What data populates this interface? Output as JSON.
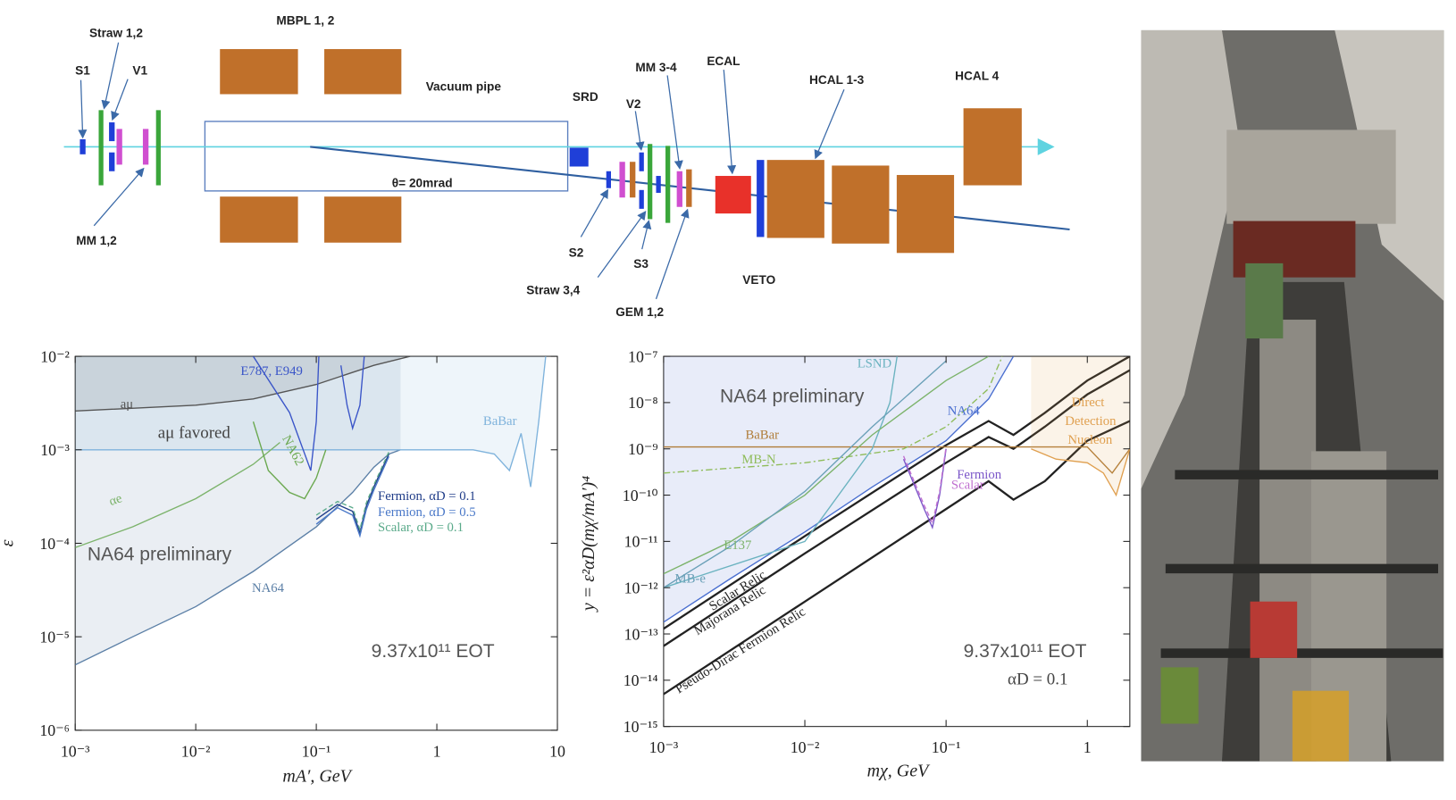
{
  "diagram": {
    "labels": [
      "Straw 1,2",
      "S1",
      "V1",
      "MBPL 1, 2",
      "Vacuum pipe",
      "SRD",
      "V2",
      "MM 3-4",
      "ECAL",
      "HCAL 1-3",
      "HCAL 4",
      "θ= 20mrad",
      "MM 1,2",
      "S2",
      "S3",
      "Straw 3,4",
      "GEM 1,2",
      "VETO"
    ]
  },
  "chart_data": [
    {
      "type": "line",
      "xscale": "log",
      "yscale": "log",
      "xlabel": "mA′, GeV",
      "ylabel": "ε",
      "xlim": [
        0.001,
        10
      ],
      "ylim": [
        1e-06,
        0.01
      ],
      "xticks": [
        {
          "value": 0.001,
          "label": "10⁻³"
        },
        {
          "value": 0.01,
          "label": "10⁻²"
        },
        {
          "value": 0.1,
          "label": "10⁻¹"
        },
        1,
        10
      ],
      "yticks": [
        {
          "value": 1e-06,
          "label": "10⁻⁶"
        },
        {
          "value": 1e-05,
          "label": "10⁻⁵"
        },
        {
          "value": 0.0001,
          "label": "10⁻⁴"
        },
        {
          "value": 0.001,
          "label": "10⁻³"
        },
        {
          "value": 0.01,
          "label": "10⁻²"
        }
      ],
      "annotations": [
        "aμ favored",
        "NA64 preliminary",
        "9.37x10¹¹ EOT"
      ],
      "series": [
        {
          "name": "NA64",
          "color": "#5b7fa6",
          "fill": "above",
          "x": [
            0.001,
            0.003,
            0.01,
            0.03,
            0.1,
            0.2,
            0.3,
            0.4,
            0.5
          ],
          "values": [
            5e-06,
            1e-05,
            2.1e-05,
            5e-05,
            0.00015,
            0.00035,
            0.00065,
            0.0009,
            0.001
          ]
        },
        {
          "name": "BaBar",
          "color": "#7fb3dc",
          "fill": "above",
          "x": [
            0.001,
            0.5,
            1,
            2,
            3,
            4,
            5,
            6,
            7,
            8
          ],
          "values": [
            0.001,
            0.001,
            0.001,
            0.001,
            0.0009,
            0.0006,
            0.0015,
            0.0004,
            0.002,
            0.01
          ]
        },
        {
          "name": "aμ",
          "color": "#555555",
          "fill": "above",
          "x": [
            0.001,
            0.01,
            0.03,
            0.1,
            0.3,
            0.6
          ],
          "values": [
            0.0026,
            0.003,
            0.0035,
            0.005,
            0.008,
            0.01
          ]
        },
        {
          "name": "αe",
          "color": "#7cb36b",
          "x": [
            0.001,
            0.003,
            0.01,
            0.03,
            0.05
          ],
          "values": [
            9e-05,
            0.00015,
            0.0003,
            0.0007,
            0.0012
          ]
        },
        {
          "name": "E787, E949",
          "color": "#3a55c8",
          "x": [
            0.03,
            0.06,
            0.09,
            0.1,
            0.105,
            0.13,
            0.16,
            0.18,
            0.2,
            0.23,
            0.25
          ],
          "values": [
            0.01,
            0.0025,
            0.0006,
            0.002,
            0.01,
            null,
            0.008,
            0.003,
            0.0017,
            0.003,
            0.01
          ]
        },
        {
          "name": "NA62",
          "color": "#6aa84f",
          "x": [
            0.03,
            0.04,
            0.06,
            0.08,
            0.1,
            0.12
          ],
          "values": [
            0.002,
            0.0006,
            0.00035,
            0.0003,
            0.0005,
            0.001
          ]
        },
        {
          "name": "Fermion, αD = 0.1",
          "color": "#1f3c88",
          "x": [
            0.1,
            0.15,
            0.2,
            0.23,
            0.26,
            0.3,
            0.4
          ],
          "values": [
            0.00018,
            0.00026,
            0.00022,
            0.00013,
            0.00025,
            0.0004,
            0.0009
          ]
        },
        {
          "name": "Fermion, αD = 0.5",
          "color": "#4a78c8",
          "x": [
            0.1,
            0.15,
            0.2,
            0.23,
            0.26,
            0.3,
            0.4
          ],
          "values": [
            0.00016,
            0.00024,
            0.0002,
            0.00012,
            0.00023,
            0.00037,
            0.00085
          ]
        },
        {
          "name": "Scalar, αD = 0.1",
          "color": "#5aaa8a",
          "dash": "dash",
          "x": [
            0.1,
            0.15,
            0.2,
            0.23,
            0.26,
            0.3,
            0.4
          ],
          "values": [
            0.0002,
            0.00028,
            0.00024,
            0.00014,
            0.00027,
            0.00042,
            0.00095
          ]
        }
      ]
    },
    {
      "type": "line",
      "xscale": "log",
      "yscale": "log",
      "xlabel": "mχ, GeV",
      "ylabel": "y = ε²αD(mχ/mA′)⁴",
      "xlim": [
        0.001,
        2
      ],
      "ylim": [
        1e-15,
        1e-07
      ],
      "xticks": [
        {
          "value": 0.001,
          "label": "10⁻³"
        },
        {
          "value": 0.01,
          "label": "10⁻²"
        },
        {
          "value": 0.1,
          "label": "10⁻¹"
        },
        1
      ],
      "yticks": [
        {
          "value": 1e-15,
          "label": "10⁻¹⁵"
        },
        {
          "value": 1e-14,
          "label": "10⁻¹⁴"
        },
        {
          "value": 1e-13,
          "label": "10⁻¹³"
        },
        {
          "value": 1e-12,
          "label": "10⁻¹²"
        },
        {
          "value": 1e-11,
          "label": "10⁻¹¹"
        },
        {
          "value": 1e-10,
          "label": "10⁻¹⁰"
        },
        {
          "value": 1e-09,
          "label": "10⁻⁹"
        },
        {
          "value": 1e-08,
          "label": "10⁻⁸"
        },
        {
          "value": 1e-07,
          "label": "10⁻⁷"
        }
      ],
      "annotations": [
        "NA64 preliminary",
        "9.37x10¹¹ EOT",
        "αD = 0.1",
        "Direct",
        "Detection",
        "Nucleon"
      ],
      "series": [
        {
          "name": "NA64",
          "color": "#4a6fd0",
          "fill": "above",
          "x": [
            0.001,
            0.003,
            0.01,
            0.03,
            0.1,
            0.2,
            0.3
          ],
          "values": [
            1.8e-13,
            1.6e-12,
            1.6e-11,
            1.5e-10,
            1.5e-09,
            1.2e-08,
            1e-07
          ]
        },
        {
          "name": "Scalar Relic",
          "color": "#222222",
          "x": [
            0.001,
            0.01,
            0.1,
            0.2,
            0.3,
            0.5,
            1,
            2
          ],
          "values": [
            1.3e-13,
            1.3e-11,
            1.2e-09,
            4e-09,
            2e-09,
            6e-09,
            3e-08,
            1e-07
          ]
        },
        {
          "name": "Majorana Relic",
          "color": "#222222",
          "x": [
            0.001,
            0.01,
            0.1,
            0.2,
            0.3,
            0.5,
            1,
            2
          ],
          "values": [
            5.5e-14,
            5.5e-12,
            5e-10,
            1.8e-09,
            1e-09,
            3e-09,
            1.5e-08,
            5e-08
          ]
        },
        {
          "name": "Pseudo-Dirac Fermion Relic",
          "color": "#222222",
          "x": [
            0.001,
            0.01,
            0.1,
            0.2,
            0.3,
            0.5,
            1,
            2
          ],
          "values": [
            5e-15,
            5e-13,
            5e-11,
            2e-10,
            8e-11,
            2e-10,
            1.5e-09,
            4e-09
          ]
        },
        {
          "name": "BaBar",
          "color": "#b07d3a",
          "x": [
            0.001,
            0.3,
            1,
            1.5,
            2
          ],
          "values": [
            1.1e-09,
            1.1e-09,
            1.1e-09,
            3e-10,
            1e-09
          ]
        },
        {
          "name": "MB-N",
          "color": "#8fbc5a",
          "dash": "dashdot",
          "x": [
            0.001,
            0.01,
            0.05,
            0.1,
            0.2,
            0.25
          ],
          "values": [
            3e-10,
            5e-10,
            1e-09,
            3e-09,
            2e-08,
            1e-07
          ]
        },
        {
          "name": "LSND",
          "color": "#6bb3c0",
          "x": [
            0.001,
            0.01,
            0.03,
            0.04,
            0.045
          ],
          "values": [
            1e-12,
            1e-11,
            1e-09,
            1e-08,
            1e-07
          ]
        },
        {
          "name": "E137",
          "color": "#7cb36b",
          "x": [
            0.001,
            0.003,
            0.01,
            0.03,
            0.1,
            0.2
          ],
          "values": [
            2e-12,
            1e-11,
            1e-10,
            2e-09,
            3e-08,
            1e-07
          ]
        },
        {
          "name": "MB-e",
          "color": "#6aa0b8",
          "x": [
            0.001,
            0.003,
            0.01,
            0.03,
            0.1
          ],
          "values": [
            1e-12,
            8e-12,
            1.2e-10,
            3e-09,
            8e-08
          ]
        },
        {
          "name": "Fermion",
          "color": "#7a55c8",
          "x": [
            0.05,
            0.07,
            0.08,
            0.09,
            0.1
          ],
          "values": [
            6e-10,
            5e-11,
            2e-11,
            1e-10,
            1e-09
          ]
        },
        {
          "name": "Scalar",
          "color": "#c070d0",
          "dash": "dash",
          "x": [
            0.05,
            0.07,
            0.08,
            0.09,
            0.1
          ],
          "values": [
            7e-10,
            6e-11,
            2.5e-11,
            1.2e-10,
            1.1e-09
          ]
        },
        {
          "color": "#e0a050",
          "fill": "above",
          "x": [
            0.4,
            0.6,
            1,
            1.3,
            1.6,
            2
          ],
          "values": [
            1e-09,
            6e-10,
            5e-10,
            3e-10,
            1e-10,
            1e-09
          ]
        }
      ]
    }
  ]
}
